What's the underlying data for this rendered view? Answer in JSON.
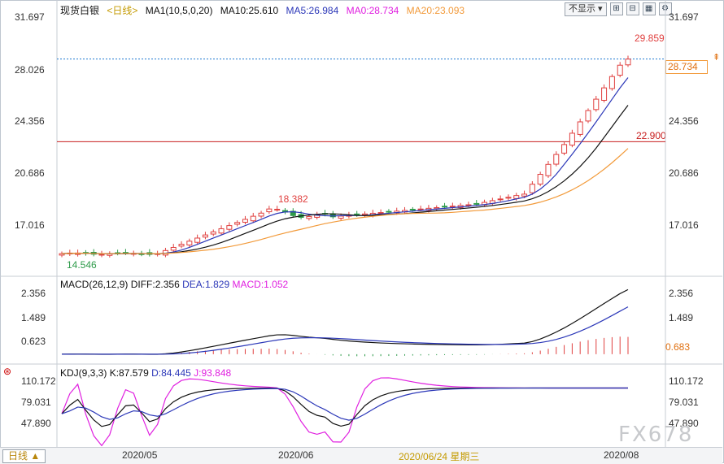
{
  "header": {
    "symbol": "现货白银",
    "period": "<日线>",
    "ma_main": "MA1(10,5,0,20)",
    "ma10": "MA10:25.610",
    "ma5": "MA5:26.984",
    "ma0": "MA0:28.734",
    "ma20": "MA20:23.093"
  },
  "controls": {
    "display_select": "不显示",
    "buttons": [
      "zoom-in-icon",
      "zoom-out-icon",
      "grid-icon",
      "settings-icon"
    ]
  },
  "main_axis": {
    "ticks": [
      "31.697",
      "28.026",
      "24.356",
      "20.686",
      "17.016"
    ]
  },
  "main_right_ticks": [
    "31.697",
    "24.356",
    "20.686",
    "17.016"
  ],
  "price_tag": "28.734",
  "annotations": {
    "high": "29.859",
    "mid_high": "18.382",
    "low": "14.546",
    "hline": "22.900"
  },
  "macd": {
    "title": "MACD(26,12,9)",
    "diff": "DIFF:2.356",
    "dea": "DEA:1.829",
    "macd": "MACD:1.052",
    "ticks": [
      "2.356",
      "1.489",
      "0.623"
    ],
    "right_ticks": [
      "2.356",
      "1.489"
    ],
    "tag": "0.683"
  },
  "kdj": {
    "title": "KDJ(9,3,3)",
    "k": "K:87.579",
    "d": "D:84.445",
    "j": "J:93.848",
    "ticks": [
      "110.172",
      "79.031",
      "47.890"
    ],
    "right_ticks": [
      "110.172",
      "79.031",
      "47.890"
    ]
  },
  "xaxis": {
    "labels": [
      "2020/05",
      "2020/06",
      "2020/06/24 星期三",
      "2020/08"
    ]
  },
  "bottom": {
    "period_button": "日线 ▲"
  },
  "watermark": "FX678",
  "colors": {
    "up": "#e0403f",
    "down": "#2e9b4a",
    "ma5": "#2b37b8",
    "ma10": "#111111",
    "ma20": "#f29a3a",
    "macd_dea": "#2b37b8",
    "kdj_j": "#e020e0",
    "ma0_line": "#1f78d1",
    "hline": "#c81e1e"
  }
}
